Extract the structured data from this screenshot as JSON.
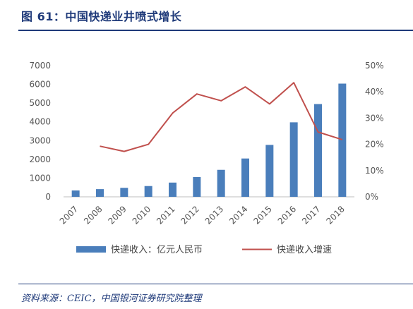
{
  "header": {
    "title": "图 61：中国快递业井喷式增长"
  },
  "footer": {
    "source": "资料来源：CEIC，中国银河证券研究院整理"
  },
  "chart_data": {
    "type": "bar",
    "title": "",
    "categories": [
      "2007",
      "2008",
      "2009",
      "2010",
      "2011",
      "2012",
      "2013",
      "2014",
      "2015",
      "2016",
      "2017",
      "2018"
    ],
    "series": [
      {
        "name": "快递收入：亿元人民币",
        "type": "bar",
        "axis": "left",
        "color": "#4a7ebb",
        "values": [
          340,
          410,
          480,
          575,
          760,
          1055,
          1440,
          2045,
          2770,
          3975,
          4950,
          6040
        ]
      },
      {
        "name": "快递收入增速",
        "type": "line",
        "axis": "right",
        "color": "#c0504d",
        "values": [
          null,
          19.3,
          17.3,
          20.0,
          31.9,
          39.2,
          36.6,
          41.9,
          35.4,
          43.5,
          24.7,
          21.8
        ]
      }
    ],
    "y_left": {
      "ylim": [
        0,
        7000
      ],
      "ticks": [
        0,
        1000,
        2000,
        3000,
        4000,
        5000,
        6000,
        7000
      ]
    },
    "y_right": {
      "ylim": [
        0,
        50
      ],
      "ticks": [
        "0%",
        "10%",
        "20%",
        "30%",
        "40%",
        "50%"
      ]
    },
    "grid": false,
    "legend_position": "bottom"
  }
}
